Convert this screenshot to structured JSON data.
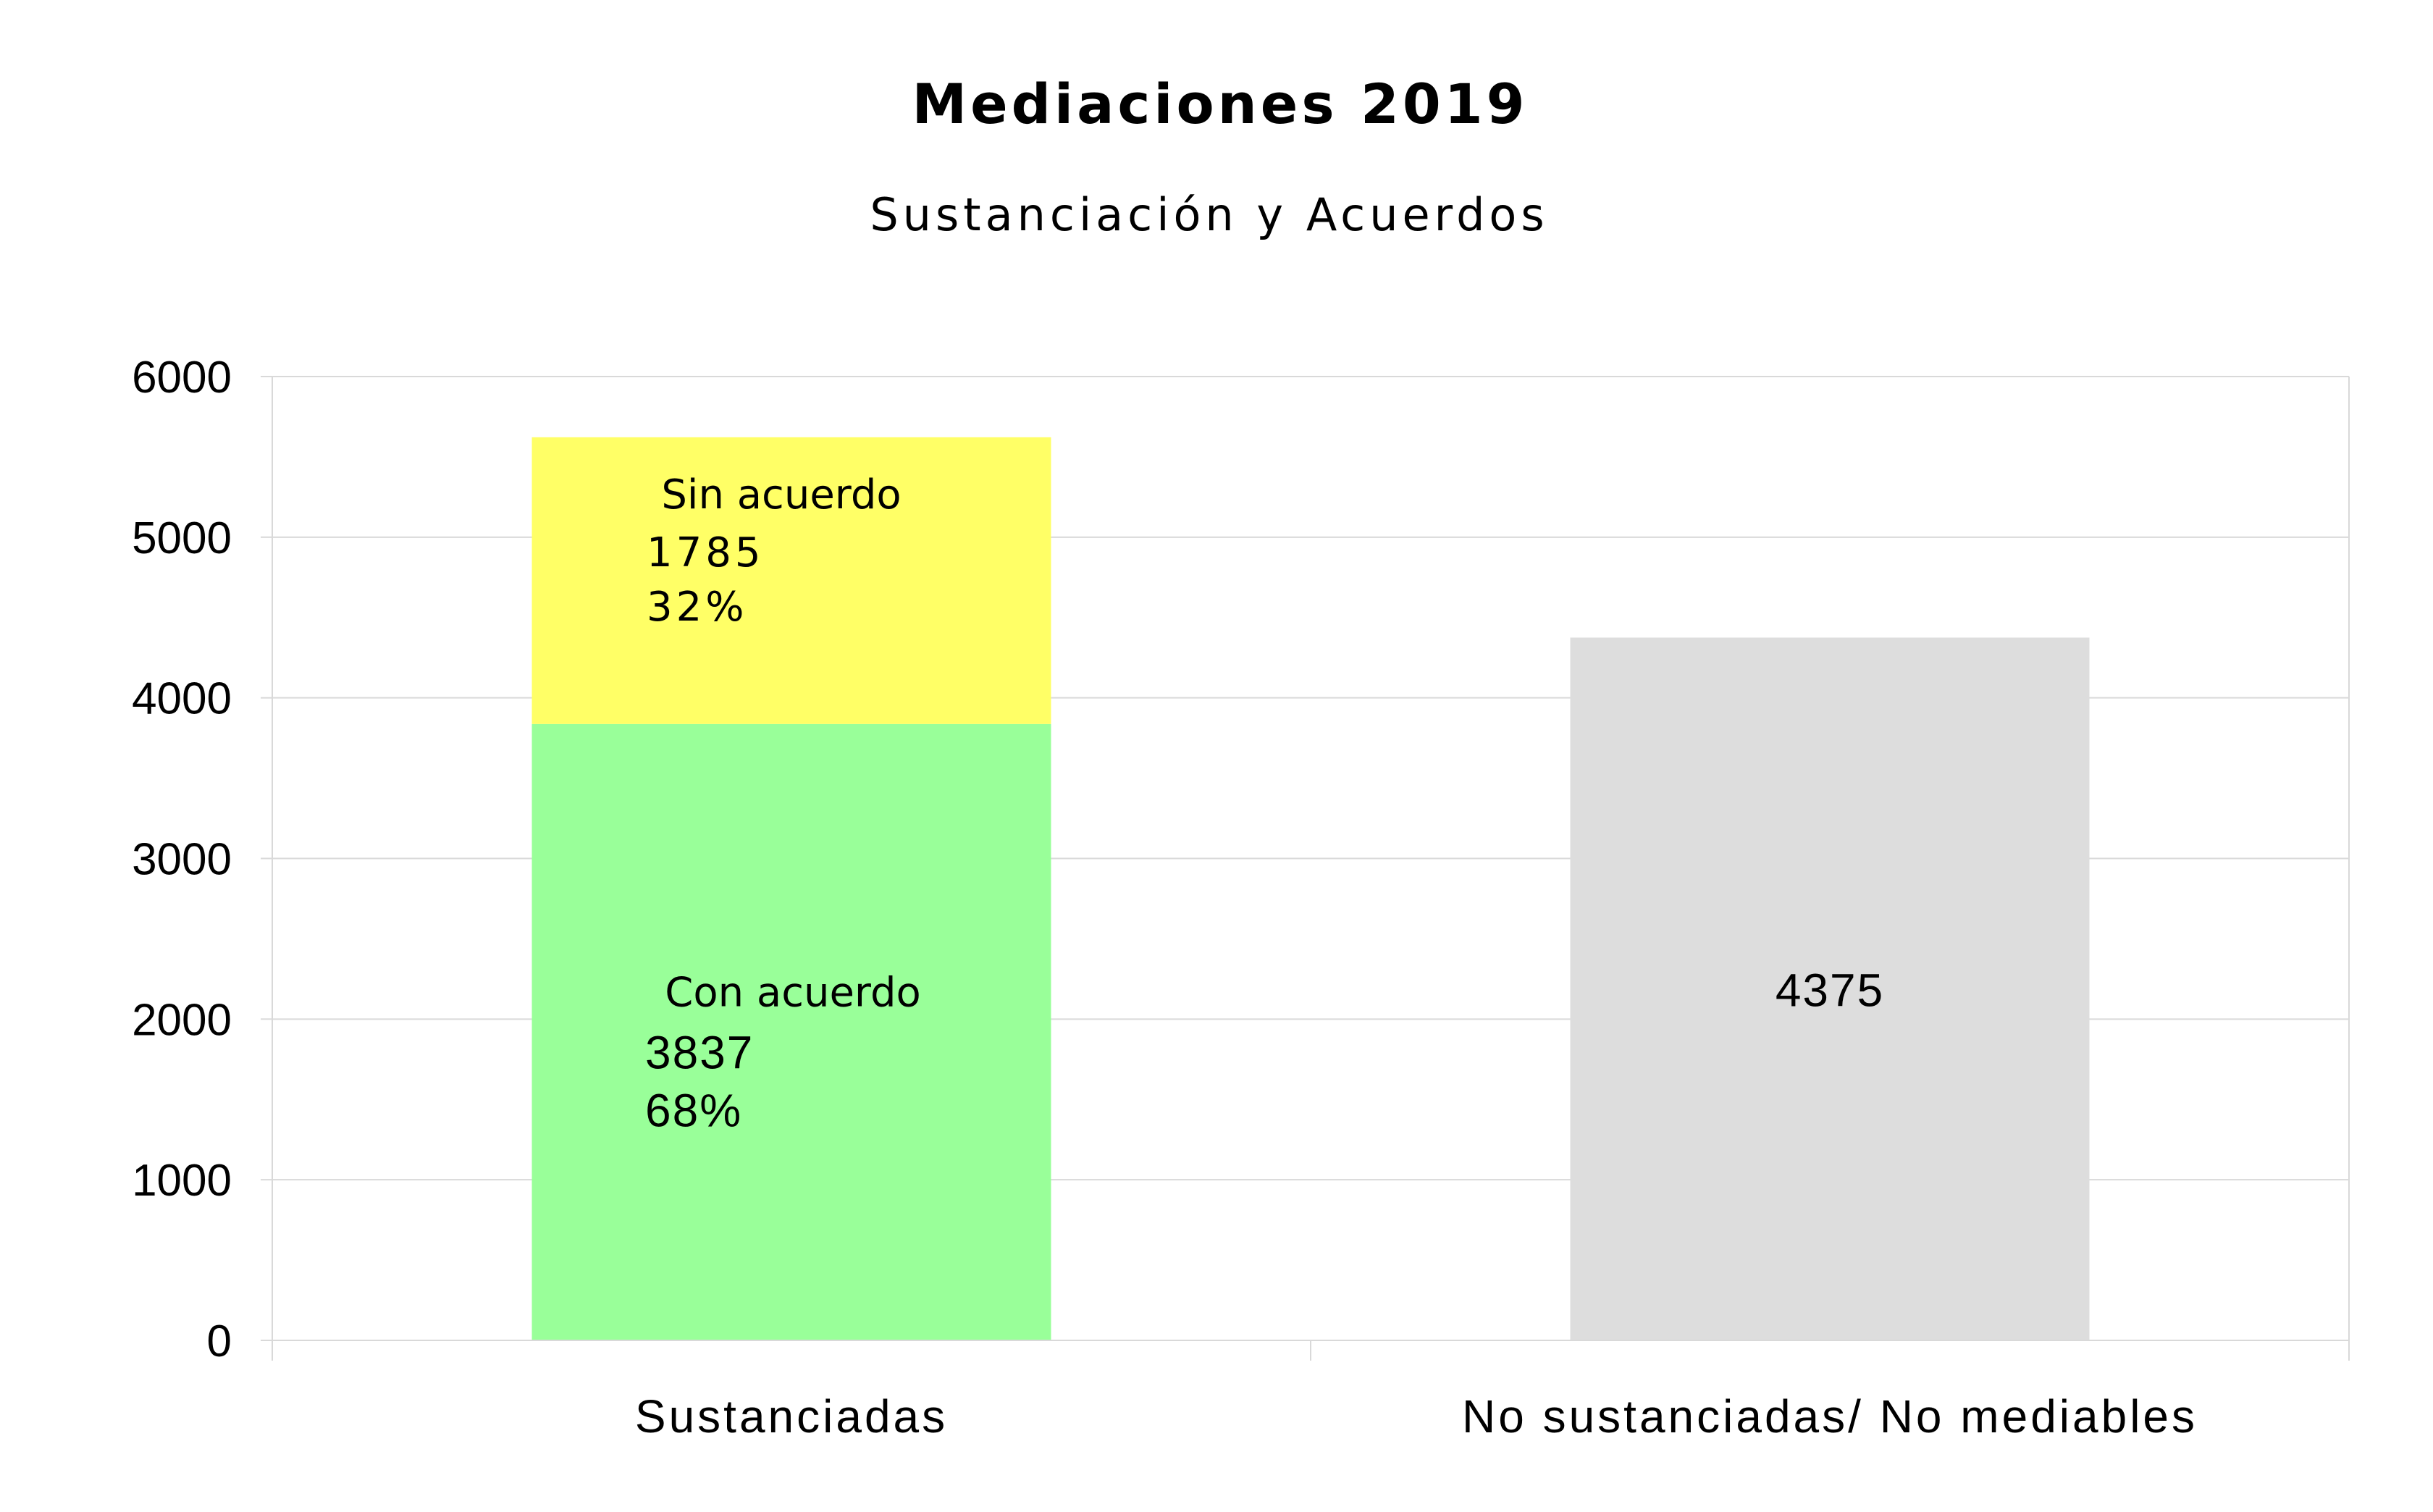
{
  "chart_data": {
    "type": "bar",
    "stacked": true,
    "title": "Mediaciones 2019",
    "subtitle": "Sustanciación y Acuerdos",
    "xlabel": "",
    "ylabel": "",
    "ylim": [
      0,
      6000
    ],
    "yticks": [
      "0",
      "1000",
      "2000",
      "3000",
      "4000",
      "5000",
      "6000"
    ],
    "grid": true,
    "legend": "none",
    "categories": [
      "Sustanciadas",
      "No sustanciadas/ No mediables"
    ],
    "series": [
      {
        "name": "Con acuerdo",
        "color": "#99ff99",
        "values": [
          3837,
          null
        ],
        "value_labels": [
          "3837",
          null
        ],
        "percent_labels": [
          "68%",
          null
        ]
      },
      {
        "name": "Sin acuerdo",
        "color": "#ffff66",
        "values": [
          1785,
          null
        ],
        "value_labels": [
          "1785",
          null
        ],
        "percent_labels": [
          "32%",
          null
        ]
      },
      {
        "name": "No sustanciadas/ No mediables",
        "color": "#dddddd",
        "values": [
          null,
          4375
        ],
        "value_labels": [
          null,
          "4375"
        ],
        "percent_labels": [
          null,
          null
        ]
      }
    ]
  }
}
